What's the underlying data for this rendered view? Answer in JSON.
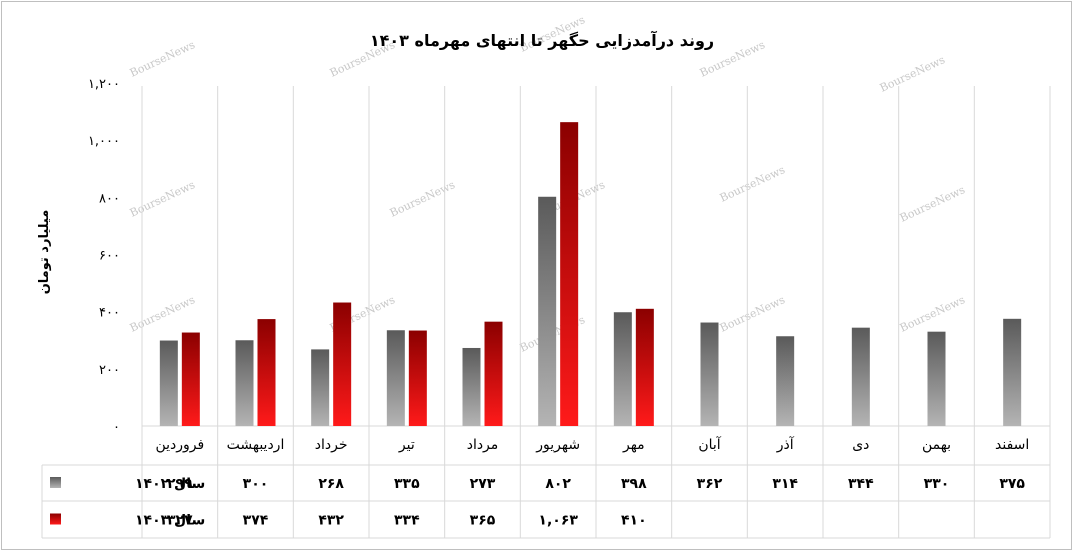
{
  "chart_data": {
    "type": "bar",
    "title": "روند درآمدزایی حگهر تا انتهای مهرماه ۱۴۰۳",
    "ylabel": "میلیارد تومان",
    "xlabel": "",
    "ylim": [
      0,
      1200
    ],
    "yticks": [
      0,
      200,
      400,
      600,
      800,
      1000,
      1200
    ],
    "ytick_labels": [
      "۰",
      "۲۰۰",
      "۴۰۰",
      "۶۰۰",
      "۸۰۰",
      "۱,۰۰۰",
      "۱,۲۰۰"
    ],
    "grid": "vertical category separators",
    "legend": "data table below chart",
    "categories": [
      "فروردین",
      "اردیبهشت",
      "خرداد",
      "تیر",
      "مرداد",
      "شهریور",
      "مهر",
      "آبان",
      "آذر",
      "دی",
      "بهمن",
      "اسفند"
    ],
    "series": [
      {
        "name": "سال ۱۴۰۲",
        "color": "#808080",
        "values": [
          299,
          300,
          268,
          335,
          273,
          802,
          398,
          362,
          314,
          344,
          330,
          375
        ],
        "labels": [
          "۲۹۹",
          "۳۰۰",
          "۲۶۸",
          "۳۳۵",
          "۲۷۳",
          "۸۰۲",
          "۳۹۸",
          "۳۶۲",
          "۳۱۴",
          "۳۴۴",
          "۳۳۰",
          "۳۷۵"
        ]
      },
      {
        "name": "سال ۱۴۰۳",
        "color": "#d40000",
        "values": [
          327,
          374,
          432,
          334,
          365,
          1063,
          410,
          null,
          null,
          null,
          null,
          null
        ],
        "labels": [
          "۳۲۷",
          "۳۷۴",
          "۴۳۲",
          "۳۳۴",
          "۳۶۵",
          "۱,۰۶۳",
          "۴۱۰",
          "",
          "",
          "",
          "",
          ""
        ]
      }
    ]
  },
  "watermark": "BourseNews"
}
